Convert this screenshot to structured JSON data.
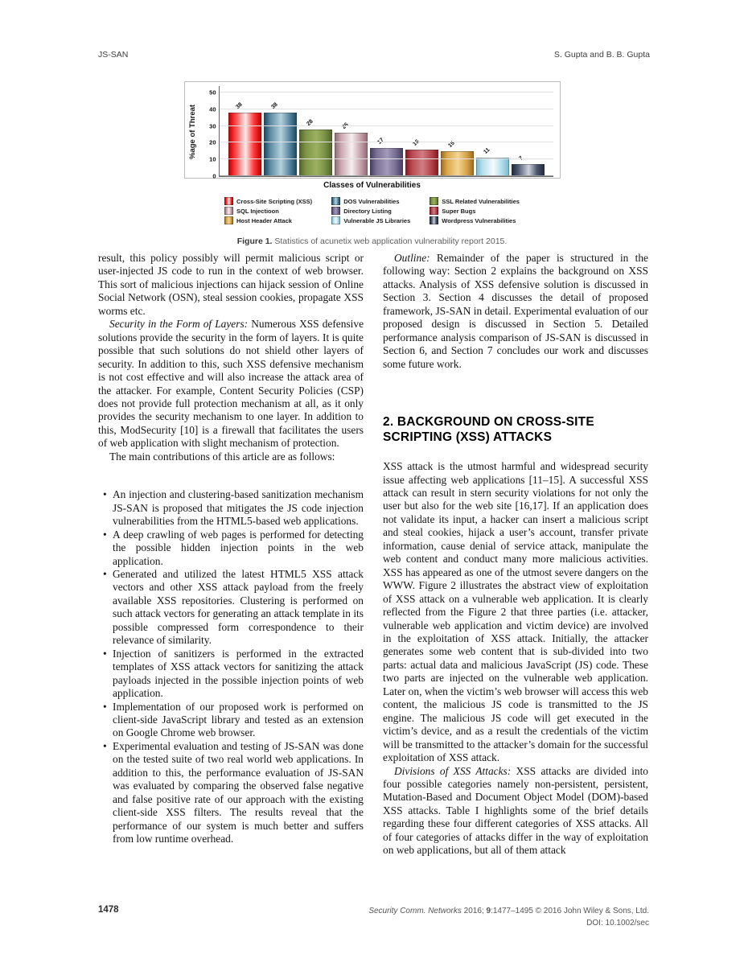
{
  "header": {
    "left": "JS-SAN",
    "right": "S. Gupta and B. B. Gupta"
  },
  "figure": {
    "caption_label": "Figure 1.",
    "caption_text": " Statistics of acunetix web application vulnerability report 2015."
  },
  "chart_data": {
    "type": "bar",
    "title": "",
    "ylabel": "%age of Threat",
    "xlabel": "Classes of Vulnerabilities",
    "ylim": [
      0,
      50
    ],
    "yticks": [
      0,
      10,
      20,
      30,
      40,
      50
    ],
    "grid": "horizontal",
    "legend_position": "bottom",
    "bars": [
      {
        "label": "Cross-Site Scripting (XSS)",
        "value": 38,
        "edge": "#c40000",
        "mid": "#ff3b3b",
        "light": "#ffecec"
      },
      {
        "label": "DOS Vulnerabilities",
        "value": 38,
        "edge": "#1f4c66",
        "mid": "#5d8ba3",
        "light": "#b3d0dd"
      },
      {
        "label": "SSL Related Vulnerabilities",
        "value": 28,
        "edge": "#55682c",
        "mid": "#7d9447",
        "light": "#9cb060"
      },
      {
        "label": "SQL Injectioon",
        "value": 26,
        "edge": "#96707a",
        "mid": "#c9a8af",
        "light": "#f6eff1"
      },
      {
        "label": "Directory Listing",
        "value": 17,
        "edge": "#4a4163",
        "mid": "#7a7095",
        "light": "#a29ab9"
      },
      {
        "label": "Super Bugs",
        "value": 16,
        "edge": "#8a1c25",
        "mid": "#b84850",
        "light": "#d07d83"
      },
      {
        "label": "Host Header Attack",
        "value": 15,
        "edge": "#a5701d",
        "mid": "#d9a84e",
        "light": "#f3d595"
      },
      {
        "label": "Vulnerable JS Libraries",
        "value": 11,
        "edge": "#7cbcd2",
        "mid": "#b5dfec",
        "light": "#f4fbfd"
      },
      {
        "label": "Wordpress Vulnerabilities",
        "value": 7,
        "edge": "#222b3e",
        "mid": "#4d5970",
        "light": "#cdd2dc"
      }
    ]
  },
  "left_column": {
    "para1": "result, this policy possibly will permit malicious script or user-injected JS code to run in the context of web browser. This sort of malicious injections can hijack session of Online Social Network (OSN), steal session cookies, propagate XSS worms etc.",
    "para2_lead": "Security in the Form of Layers:",
    "para2_text": " Numerous XSS defensive solutions provide the security in the form of layers. It is quite possible that such solutions do not shield other layers of security. In addition to this, such XSS defensive mechanism is not cost effective and will also increase the attack area of the attacker. For example, Content Security Policies (CSP) does not provide full protection mechanism at all, as it only provides the security mechanism to one layer. In addition to this, ModSecurity [10] is a firewall that facilitates the users of web application with slight mechanism of protection.",
    "para3": "The main contributions of this article are as follows:",
    "bullets": [
      "An injection and clustering-based sanitization mechanism JS-SAN is proposed that mitigates the JS code injection vulnerabilities from the HTML5-based web applications.",
      "A deep crawling of web pages is performed for detecting the possible hidden injection points in the web application.",
      "Generated and utilized the latest HTML5 XSS attack vectors and other XSS attack payload from the freely available XSS repositories. Clustering is performed on such attack vectors for generating an attack template in its possible compressed form correspondence to their relevance of similarity.",
      "Injection of sanitizers is performed in the extracted templates of XSS attack vectors for sanitizing the attack payloads injected in the possible injection points of web application.",
      "Implementation of our proposed work is performed on client-side JavaScript library and tested as an extension on Google Chrome web browser.",
      "Experimental evaluation and testing of JS-SAN was done on the tested suite of two real world web applications. In addition to this, the performance evaluation of JS-SAN was evaluated by comparing the observed false negative and false positive rate of our approach with the existing client-side XSS filters. The results reveal that the performance of our system is much better and suffers from low runtime overhead."
    ]
  },
  "right_column": {
    "para1_lead": "Outline:",
    "para1_text": " Remainder of the paper is structured in the following way: Section 2 explains the background on XSS attacks. Analysis of XSS defensive solution is discussed in Section 3. Section 4 discusses the detail of proposed framework, JS-SAN in detail. Experimental evaluation of our proposed design is discussed in Section 5. Detailed performance analysis comparison of JS-SAN is discussed in Section 6, and Section 7 concludes our work and discusses some future work.",
    "heading": "2. BACKGROUND ON CROSS-SITE SCRIPTING (XSS) ATTACKS",
    "para2": "XSS attack is the utmost harmful and widespread security issue affecting web applications [11–15]. A successful XSS attack can result in stern security violations for not only the user but also for the web site [16,17]. If an application does not validate its input, a hacker can insert a malicious script and steal cookies, hijack a user’s account, transfer private information, cause denial of service attack, manipulate the web content and conduct many more malicious activities. XSS has appeared as one of the utmost severe dangers on the WWW. Figure 2 illustrates the abstract view of exploitation of XSS attack on a vulnerable web application. It is clearly reflected from the Figure 2 that three parties (i.e. attacker, vulnerable web application and victim device) are involved in the exploitation of XSS attack. Initially, the attacker generates some web content that is sub-divided into two parts: actual data and malicious JavaScript (JS) code. These two parts are injected on the vulnerable web application. Later on, when the victim’s web browser will access this web content, the malicious JS code is transmitted to the JS engine. The malicious JS code will get executed in the victim’s device, and as a result the credentials of the victim will be transmitted to the attacker’s domain for the successful exploitation of XSS attack.",
    "para3_lead": "Divisions of XSS Attacks:",
    "para3_text": " XSS attacks are divided into four possible categories namely non-persistent, persistent, Mutation-Based and Document Object Model (DOM)-based XSS attacks. Table I highlights some of the brief details regarding these four different categories of XSS attacks. All of four categories of attacks differ in the way of exploitation on web applications, but all of them attack"
  },
  "footer": {
    "page_number": "1478",
    "journal_italic": "Security Comm. Networks",
    "journal_mid": " 2016; ",
    "volume": "9",
    "journal_rest": ":1477–1495 © 2016 John Wiley & Sons, Ltd.",
    "doi": "DOI: 10.1002/sec"
  }
}
